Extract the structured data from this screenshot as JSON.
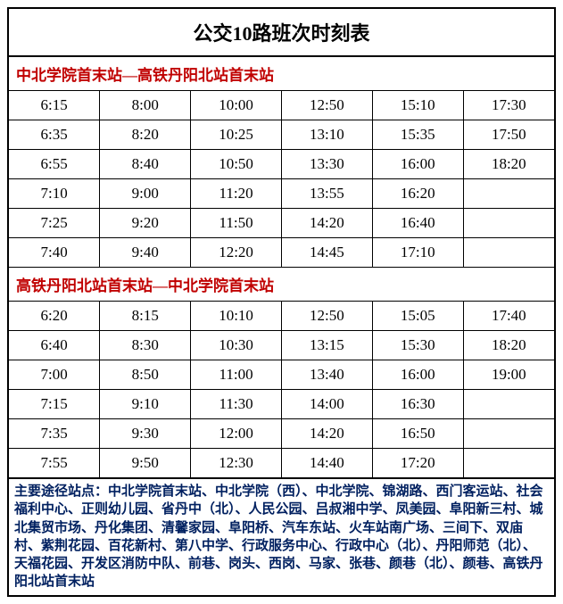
{
  "title": "公交10路班次时刻表",
  "header_color": "#c00000",
  "stops_color": "#002060",
  "text_color": "#000000",
  "sections": [
    {
      "header": "中北学院首末站—高铁丹阳北站首末站",
      "rows": [
        [
          "6:15",
          "8:00",
          "10:00",
          "12:50",
          "15:10",
          "17:30"
        ],
        [
          "6:35",
          "8:20",
          "10:25",
          "13:10",
          "15:35",
          "17:50"
        ],
        [
          "6:55",
          "8:40",
          "10:50",
          "13:30",
          "16:00",
          "18:20"
        ],
        [
          "7:10",
          "9:00",
          "11:20",
          "13:55",
          "16:20",
          ""
        ],
        [
          "7:25",
          "9:20",
          "11:50",
          "14:20",
          "16:40",
          ""
        ],
        [
          "7:40",
          "9:40",
          "12:20",
          "14:45",
          "17:10",
          ""
        ]
      ]
    },
    {
      "header": "高铁丹阳北站首末站—中北学院首末站",
      "rows": [
        [
          "6:20",
          "8:15",
          "10:10",
          "12:50",
          "15:05",
          "17:40"
        ],
        [
          "6:40",
          "8:30",
          "10:30",
          "13:15",
          "15:30",
          "18:20"
        ],
        [
          "7:00",
          "8:50",
          "11:00",
          "13:40",
          "16:00",
          "19:00"
        ],
        [
          "7:15",
          "9:10",
          "11:30",
          "14:00",
          "16:30",
          ""
        ],
        [
          "7:35",
          "9:30",
          "12:00",
          "14:20",
          "16:50",
          ""
        ],
        [
          "7:55",
          "9:50",
          "12:30",
          "14:40",
          "17:20",
          ""
        ]
      ]
    }
  ],
  "stops_label": "主要途径站点：",
  "stops_text": "中北学院首末站、中北学院（西）、中北学院、锦湖路、西门客运站、社会福利中心、正则幼儿园、省丹中（北）、人民公园、吕叔湘中学、凤美园、阜阳新三村、城北集贸市场、丹化集团、清馨家园、阜阳桥、汽车东站、火车站南广场、三间下、双庙村、紫荆花园、百花新村、第八中学、行政服务中心、行政中心（北）、丹阳师范（北）、天福花园、开发区消防中队、前巷、岗头、西岗、马家、张巷、颜巷（北）、颜巷、高铁丹阳北站首末站"
}
